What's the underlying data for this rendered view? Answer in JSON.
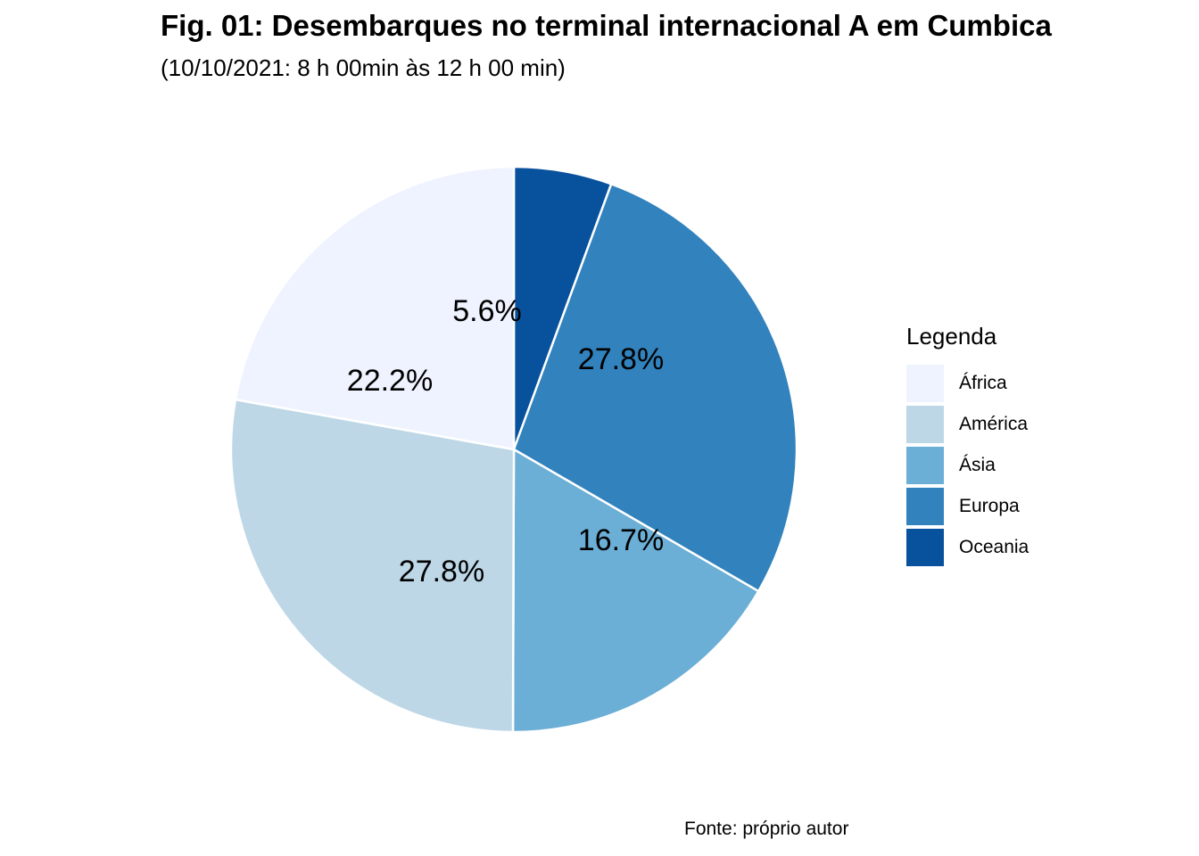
{
  "chart_data": {
    "type": "pie",
    "title": "Fig. 01: Desembarques no terminal internacional A em Cumbica",
    "subtitle": "(10/10/2021: 8 h 00min às 12 h 00 min)",
    "caption": "Fonte: próprio autor",
    "legend_title": "Legenda",
    "legend_position": "right",
    "categories": [
      "África",
      "América",
      "Ásia",
      "Europa",
      "Oceania"
    ],
    "values": [
      22.2,
      27.8,
      16.7,
      27.8,
      5.6
    ],
    "labels": [
      "22.2%",
      "27.8%",
      "16.7%",
      "27.8%",
      "5.6%"
    ],
    "colors": [
      "#EFF3FF",
      "#BDD7E7",
      "#6BAED6",
      "#3182BD",
      "#08519C"
    ]
  }
}
